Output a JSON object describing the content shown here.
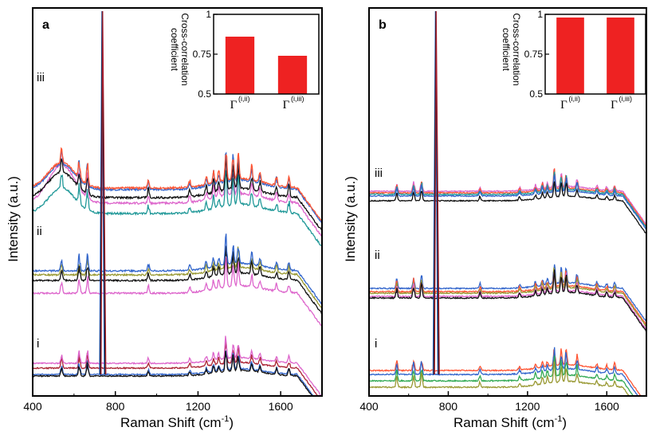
{
  "figure": {
    "y_axis_label": "Intensity (a.u.)",
    "x_axis_label_main": "Raman Shift (cm",
    "x_axis_label_sup": "-1",
    "x_axis_label_end": ")"
  },
  "inset_common": {
    "ylabel_line1": "Cross-correlation",
    "ylabel_line2": "coefficient",
    "yticks": [
      "0.5",
      "0.75",
      "1"
    ],
    "category_symbol": "Γ",
    "category_sups": [
      "(i,ii)",
      "(i,iii)"
    ]
  },
  "colors": {
    "bar": "#ee2222",
    "black": "#111111",
    "blue": "#3366cc",
    "red": "#ff5533",
    "magenta": "#dd66cc",
    "teal": "#229999",
    "olive": "#999933",
    "darkred": "#aa2233",
    "green": "#33aa55"
  },
  "chart_data": [
    {
      "type": "line",
      "panel": "a",
      "xlabel": "Raman Shift (cm-1)",
      "ylabel": "Intensity (a.u.)",
      "xlim": [
        400,
        1800
      ],
      "xticks": [
        400,
        800,
        1200,
        1600
      ],
      "group_labels": [
        "iii",
        "ii",
        "i"
      ],
      "major_peaks_cm1": [
        540,
        625,
        665,
        735,
        960,
        1160,
        1240,
        1275,
        1300,
        1335,
        1370,
        1395,
        1460,
        1500,
        1580,
        1640
      ],
      "groups": [
        {
          "label": "iii",
          "series_colors": [
            "magenta",
            "teal",
            "black",
            "blue",
            "red"
          ]
        },
        {
          "label": "ii",
          "series_colors": [
            "olive",
            "black",
            "blue",
            "magenta"
          ]
        },
        {
          "label": "i",
          "series_colors": [
            "darkred",
            "blue",
            "magenta",
            "black"
          ]
        }
      ],
      "inset": {
        "type": "bar",
        "categories": [
          "Γ(i,ii)",
          "Γ(i,iii)"
        ],
        "values": [
          0.86,
          0.74
        ],
        "ylim": [
          0.5,
          1.0
        ],
        "ylabel": "Cross-correlation coefficient"
      }
    },
    {
      "type": "line",
      "panel": "b",
      "xlabel": "Raman Shift (cm-1)",
      "ylabel": "Intensity (a.u.)",
      "xlim": [
        400,
        1800
      ],
      "xticks": [
        400,
        800,
        1200,
        1600
      ],
      "group_labels": [
        "iii",
        "ii",
        "i"
      ],
      "major_peaks_cm1": [
        540,
        625,
        665,
        735,
        960,
        1160,
        1240,
        1275,
        1300,
        1335,
        1370,
        1395,
        1450,
        1550,
        1600,
        1640
      ],
      "groups": [
        {
          "label": "iii",
          "series_colors": [
            "magenta",
            "red",
            "teal",
            "blue",
            "black"
          ]
        },
        {
          "label": "ii",
          "series_colors": [
            "blue",
            "red",
            "olive",
            "magenta",
            "black"
          ]
        },
        {
          "label": "i",
          "series_colors": [
            "red",
            "blue",
            "green",
            "olive"
          ]
        }
      ],
      "inset": {
        "type": "bar",
        "categories": [
          "Γ(i,ii)",
          "Γ(i,iii)"
        ],
        "values": [
          0.98,
          0.98
        ],
        "ylim": [
          0.5,
          1.0
        ],
        "ylabel": "Cross-correlation coefficient"
      }
    }
  ]
}
